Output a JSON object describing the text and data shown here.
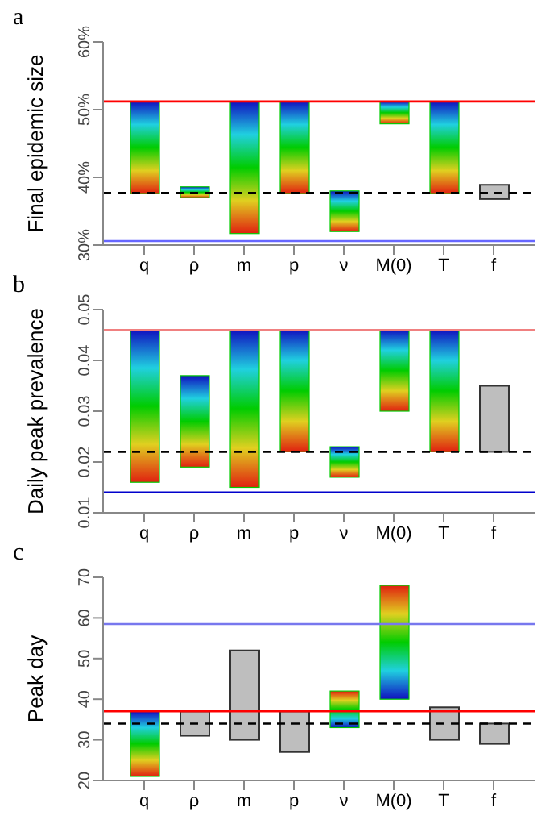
{
  "chart_data": [
    {
      "type": "bar",
      "title": "a",
      "ylabel": "Final epidemic size",
      "categories": [
        "q",
        "ρ",
        "m",
        "p",
        "ν",
        "M(0)",
        "T",
        "f"
      ],
      "base": [
        51.2,
        38.6,
        51.2,
        51.2,
        38.0,
        51.2,
        51.2,
        38.9
      ],
      "values": [
        -13.6,
        -1.6,
        -19.5,
        -13.6,
        -6.0,
        -3.3,
        -13.6,
        -2.1
      ],
      "colors": [
        "#00cc00",
        "#00cc00",
        "#00cc00",
        "#00cc00",
        "#00cc00",
        "#00cc00",
        "#00cc00",
        "#bebebe"
      ],
      "ylim": [
        30,
        60
      ],
      "yticks": [
        {
          "value": 30,
          "label": "30%"
        },
        {
          "value": 40,
          "label": "40%"
        },
        {
          "value": 50,
          "label": "50%"
        },
        {
          "value": 60,
          "label": "60%"
        }
      ],
      "ref_lines": [
        {
          "axis": "y",
          "value": 51.2,
          "color": "#ff0000",
          "line_style": "solid"
        },
        {
          "axis": "y",
          "value": 30.6,
          "color": "#6666ff",
          "line_style": "solid"
        },
        {
          "axis": "y",
          "value": 37.7,
          "color": "#000000",
          "line_style": "dashed"
        }
      ]
    },
    {
      "type": "bar",
      "title": "b",
      "ylabel": "Daily peak prevalence",
      "categories": [
        "q",
        "ρ",
        "m",
        "p",
        "ν",
        "M(0)",
        "T",
        "f"
      ],
      "base": [
        0.046,
        0.037,
        0.046,
        0.046,
        0.023,
        0.046,
        0.046,
        0.035
      ],
      "values": [
        -0.03,
        -0.018,
        -0.031,
        -0.024,
        -0.006,
        -0.016,
        -0.024,
        -0.013
      ],
      "colors": [
        "#00cc00",
        "#00cc00",
        "#00cc00",
        "#00cc00",
        "#00cc00",
        "#00cc00",
        "#00cc00",
        "#bebebe"
      ],
      "ylim": [
        0.01,
        0.05
      ],
      "yticks": [
        0.01,
        0.02,
        0.03,
        0.04,
        0.05
      ],
      "ref_lines": [
        {
          "axis": "y",
          "value": 0.046,
          "color": "#f08080",
          "line_style": "solid"
        },
        {
          "axis": "y",
          "value": 0.014,
          "color": "#0000cc",
          "line_style": "solid"
        },
        {
          "axis": "y",
          "value": 0.022,
          "color": "#000000",
          "line_style": "dashed"
        }
      ]
    },
    {
      "type": "bar",
      "title": "c",
      "ylabel": "Peak day",
      "categories": [
        "q",
        "ρ",
        "m",
        "p",
        "ν",
        "M(0)",
        "T",
        "f"
      ],
      "base": [
        37,
        37,
        52,
        37,
        33,
        40,
        38,
        34
      ],
      "values": [
        -16,
        -6,
        -22,
        -10,
        9,
        28,
        -8,
        -5
      ],
      "colors": [
        "#00cc00",
        "#bebebe",
        "#bebebe",
        "#bebebe",
        "#00cc00",
        "#00cc00",
        "#bebebe",
        "#bebebe"
      ],
      "ylim": [
        20,
        70
      ],
      "yticks": [
        20,
        30,
        40,
        50,
        60,
        70
      ],
      "ref_lines": [
        {
          "axis": "y",
          "value": 58.5,
          "color": "#7777ee",
          "line_style": "solid"
        },
        {
          "axis": "y",
          "value": 37,
          "color": "#ff0000",
          "line_style": "solid"
        },
        {
          "axis": "y",
          "value": 34,
          "color": "#000000",
          "line_style": "dashed"
        }
      ]
    }
  ]
}
